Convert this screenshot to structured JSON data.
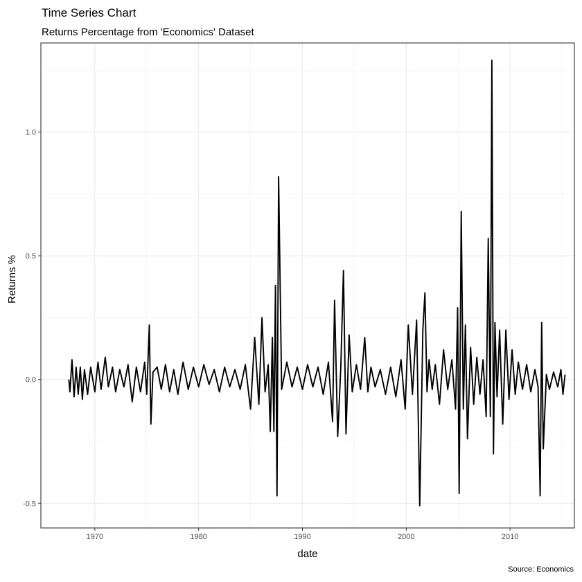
{
  "chart_data": {
    "type": "line",
    "title": "Time Series Chart",
    "subtitle": "Returns Percentage from 'Economics' Dataset",
    "xlabel": "date",
    "ylabel": "Returns %",
    "caption": "Source: Economics",
    "xlim": [
      1964.8,
      2016.2
    ],
    "ylim": [
      -0.6,
      1.36
    ],
    "x_ticks": [
      1970,
      1980,
      1990,
      2000,
      2010
    ],
    "x_tick_labels": [
      "1970",
      "1980",
      "1990",
      "2000",
      "2010"
    ],
    "y_ticks": [
      -0.5,
      0.0,
      0.5,
      1.0
    ],
    "y_tick_labels": [
      "-0.5",
      "0.0",
      "0.5",
      "1.0"
    ],
    "grid": true,
    "legend": "none",
    "line_color": "#000000",
    "series": [
      {
        "x": [
          1967.5,
          1967.6,
          1967.8,
          1968.0,
          1968.2,
          1968.4,
          1968.6,
          1968.8,
          1969.0,
          1969.3,
          1969.6,
          1970.0,
          1970.3,
          1970.6,
          1971.0,
          1971.3,
          1971.7,
          1972.0,
          1972.4,
          1972.8,
          1973.2,
          1973.6,
          1974.0,
          1974.4,
          1974.8,
          1975.0,
          1975.25,
          1975.4,
          1975.6,
          1976.0,
          1976.4,
          1976.8,
          1977.2,
          1977.6,
          1978.0,
          1978.5,
          1979.0,
          1979.5,
          1980.0,
          1980.5,
          1981.0,
          1981.5,
          1982.0,
          1982.5,
          1983.0,
          1983.5,
          1984.0,
          1984.5,
          1985.0,
          1985.4,
          1985.8,
          1986.1,
          1986.4,
          1986.7,
          1986.9,
          1987.1,
          1987.25,
          1987.4,
          1987.55,
          1987.7,
          1988.0,
          1988.5,
          1989.0,
          1989.5,
          1990.0,
          1990.5,
          1991.0,
          1991.5,
          1992.0,
          1992.5,
          1992.9,
          1993.1,
          1993.4,
          1993.7,
          1993.95,
          1994.2,
          1994.5,
          1994.8,
          1995.2,
          1995.6,
          1996.0,
          1996.3,
          1996.6,
          1997.0,
          1997.5,
          1998.0,
          1998.5,
          1999.0,
          1999.5,
          1999.9,
          2000.2,
          2000.6,
          2001.0,
          2001.3,
          2001.6,
          2001.8,
          2002.0,
          2002.2,
          2002.5,
          2002.8,
          2003.2,
          2003.6,
          2004.0,
          2004.4,
          2004.75,
          2004.95,
          2005.1,
          2005.3,
          2005.5,
          2005.7,
          2005.9,
          2006.2,
          2006.5,
          2006.8,
          2007.1,
          2007.4,
          2007.7,
          2007.9,
          2008.1,
          2008.25,
          2008.4,
          2008.55,
          2008.75,
          2009.0,
          2009.3,
          2009.6,
          2009.9,
          2010.2,
          2010.5,
          2010.8,
          2011.2,
          2011.6,
          2012.0,
          2012.4,
          2012.7,
          2012.9,
          2013.05,
          2013.2,
          2013.5,
          2013.8,
          2014.2,
          2014.6,
          2014.9,
          2015.1,
          2015.3
        ],
        "y": [
          0.0,
          -0.05,
          0.08,
          -0.07,
          0.05,
          -0.06,
          0.05,
          -0.08,
          0.04,
          -0.06,
          0.05,
          -0.05,
          0.07,
          -0.04,
          0.09,
          -0.03,
          0.05,
          -0.05,
          0.04,
          -0.03,
          0.06,
          -0.09,
          0.05,
          -0.05,
          0.07,
          -0.06,
          0.22,
          -0.18,
          0.03,
          0.05,
          -0.04,
          0.06,
          -0.05,
          0.04,
          -0.06,
          0.07,
          -0.04,
          0.05,
          -0.03,
          0.06,
          -0.02,
          0.04,
          -0.05,
          0.05,
          -0.03,
          0.04,
          -0.04,
          0.06,
          -0.12,
          0.17,
          -0.1,
          0.25,
          -0.05,
          0.06,
          -0.21,
          0.17,
          -0.21,
          0.38,
          -0.47,
          0.82,
          -0.04,
          0.07,
          -0.03,
          0.05,
          -0.04,
          0.06,
          -0.03,
          0.05,
          -0.06,
          0.07,
          -0.17,
          0.32,
          -0.23,
          0.05,
          0.44,
          -0.22,
          0.18,
          -0.05,
          0.06,
          -0.04,
          0.17,
          -0.05,
          0.05,
          -0.03,
          0.04,
          -0.06,
          0.05,
          -0.07,
          0.08,
          -0.12,
          0.22,
          -0.06,
          0.24,
          -0.51,
          0.2,
          0.35,
          -0.05,
          0.08,
          -0.04,
          0.06,
          -0.1,
          0.12,
          -0.04,
          0.08,
          -0.12,
          0.29,
          -0.46,
          0.68,
          -0.12,
          0.22,
          -0.24,
          0.13,
          -0.1,
          0.09,
          -0.06,
          0.08,
          -0.15,
          0.57,
          -0.15,
          1.29,
          -0.3,
          0.23,
          -0.07,
          0.2,
          -0.18,
          0.2,
          -0.08,
          0.12,
          -0.06,
          0.07,
          -0.04,
          0.06,
          -0.05,
          0.04,
          -0.03,
          -0.47,
          0.23,
          -0.28,
          0.02,
          -0.04,
          0.03,
          -0.03,
          0.04,
          -0.06,
          0.02
        ]
      }
    ]
  }
}
